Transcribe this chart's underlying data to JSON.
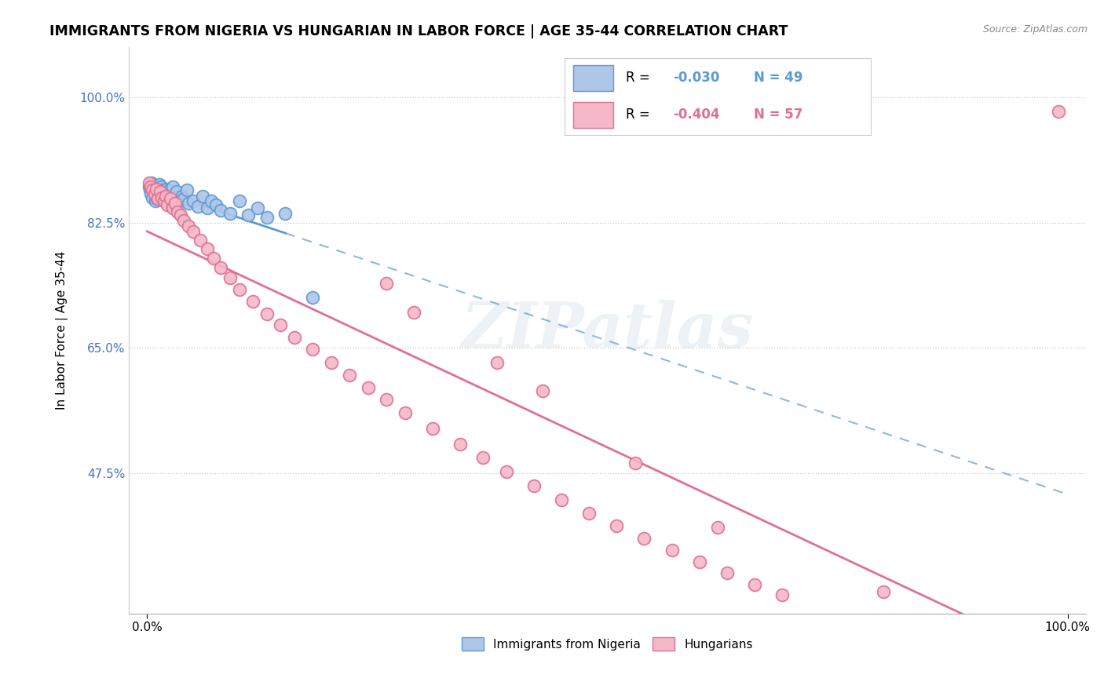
{
  "title": "IMMIGRANTS FROM NIGERIA VS HUNGARIAN IN LABOR FORCE | AGE 35-44 CORRELATION CHART",
  "source_text": "Source: ZipAtlas.com",
  "ylabel": "In Labor Force | Age 35-44",
  "xlim": [
    -0.02,
    1.02
  ],
  "ylim": [
    0.28,
    1.07
  ],
  "yticks": [
    0.475,
    0.65,
    0.825,
    1.0
  ],
  "ytick_labels": [
    "47.5%",
    "65.0%",
    "82.5%",
    "100.0%"
  ],
  "xticks": [
    0.0,
    1.0
  ],
  "xtick_labels": [
    "0.0%",
    "100.0%"
  ],
  "nigeria_color": "#aec6e8",
  "nigeria_edge_color": "#5b9bd5",
  "hungarian_color": "#f4b8c8",
  "hungarian_edge_color": "#e07090",
  "nigeria_R": -0.03,
  "nigeria_N": 49,
  "hungarian_R": -0.404,
  "hungarian_N": 57,
  "nigeria_line_color": "#5b9bd5",
  "hungarian_line_color": "#e07090",
  "watermark": "ZIPatlas",
  "nigeria_x": [
    0.002,
    0.003,
    0.004,
    0.005,
    0.006,
    0.007,
    0.008,
    0.009,
    0.01,
    0.01,
    0.011,
    0.012,
    0.013,
    0.014,
    0.015,
    0.016,
    0.017,
    0.018,
    0.019,
    0.02,
    0.021,
    0.022,
    0.023,
    0.024,
    0.025,
    0.026,
    0.027,
    0.028,
    0.03,
    0.032,
    0.035,
    0.038,
    0.04,
    0.043,
    0.045,
    0.05,
    0.055,
    0.06,
    0.065,
    0.07,
    0.075,
    0.08,
    0.09,
    0.1,
    0.11,
    0.12,
    0.13,
    0.15,
    0.18
  ],
  "nigeria_y": [
    0.875,
    0.87,
    0.865,
    0.88,
    0.86,
    0.872,
    0.868,
    0.855,
    0.862,
    0.87,
    0.858,
    0.865,
    0.878,
    0.86,
    0.875,
    0.862,
    0.87,
    0.855,
    0.868,
    0.86,
    0.872,
    0.858,
    0.865,
    0.87,
    0.855,
    0.862,
    0.858,
    0.875,
    0.86,
    0.868,
    0.855,
    0.862,
    0.858,
    0.87,
    0.852,
    0.855,
    0.848,
    0.862,
    0.845,
    0.855,
    0.85,
    0.842,
    0.838,
    0.855,
    0.835,
    0.845,
    0.832,
    0.838,
    0.72
  ],
  "hungarian_x": [
    0.002,
    0.004,
    0.006,
    0.008,
    0.01,
    0.012,
    0.014,
    0.016,
    0.018,
    0.02,
    0.022,
    0.025,
    0.028,
    0.03,
    0.033,
    0.036,
    0.04,
    0.045,
    0.05,
    0.058,
    0.065,
    0.072,
    0.08,
    0.09,
    0.1,
    0.115,
    0.13,
    0.145,
    0.16,
    0.18,
    0.2,
    0.22,
    0.24,
    0.26,
    0.28,
    0.31,
    0.34,
    0.365,
    0.39,
    0.42,
    0.45,
    0.48,
    0.51,
    0.54,
    0.57,
    0.6,
    0.63,
    0.66,
    0.69,
    0.99,
    0.26,
    0.29,
    0.38,
    0.43,
    0.53,
    0.62,
    0.8
  ],
  "hungarian_y": [
    0.88,
    0.875,
    0.87,
    0.865,
    0.872,
    0.858,
    0.868,
    0.86,
    0.855,
    0.862,
    0.85,
    0.858,
    0.845,
    0.852,
    0.84,
    0.835,
    0.828,
    0.82,
    0.812,
    0.8,
    0.788,
    0.775,
    0.762,
    0.748,
    0.732,
    0.715,
    0.698,
    0.682,
    0.665,
    0.648,
    0.63,
    0.612,
    0.595,
    0.578,
    0.56,
    0.538,
    0.516,
    0.497,
    0.478,
    0.458,
    0.438,
    0.42,
    0.402,
    0.385,
    0.368,
    0.352,
    0.336,
    0.32,
    0.306,
    0.98,
    0.74,
    0.7,
    0.63,
    0.59,
    0.49,
    0.4,
    0.31
  ]
}
